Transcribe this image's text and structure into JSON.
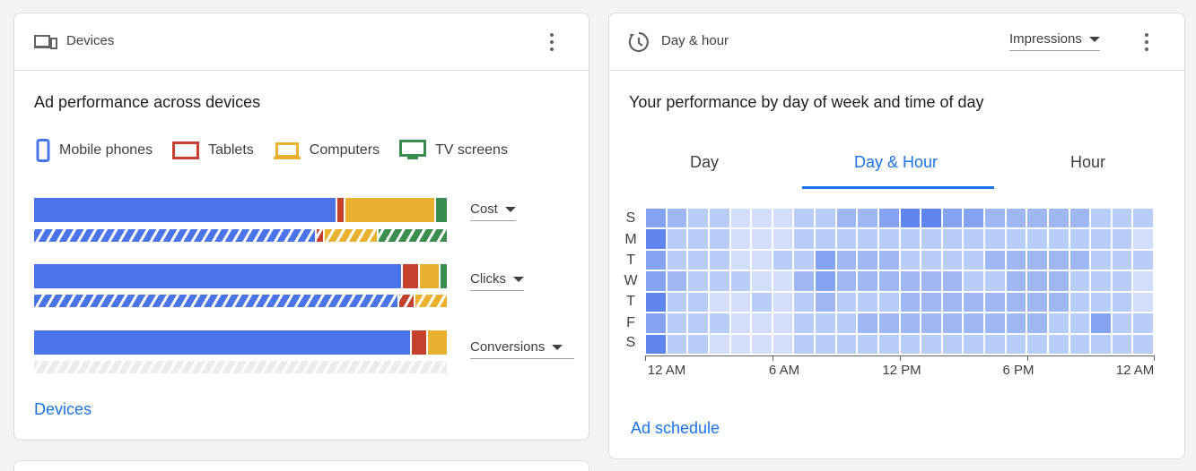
{
  "devices_card": {
    "header_title": "Devices",
    "subtitle": "Ad performance across devices",
    "legend": [
      {
        "label": "Mobile phones",
        "icon": "mobile-phone-icon",
        "color": "#4a74e8"
      },
      {
        "label": "Tablets",
        "icon": "tablet-icon",
        "color": "#c5412f"
      },
      {
        "label": "Computers",
        "icon": "computer-icon",
        "color": "#e8b230"
      },
      {
        "label": "TV screens",
        "icon": "tv-screen-icon",
        "color": "#3a8d4f"
      }
    ],
    "metrics": [
      {
        "label": "Cost",
        "shares": [
          73,
          2,
          22,
          3
        ],
        "comparison_shares": [
          68,
          2,
          13,
          17
        ]
      },
      {
        "label": "Clicks",
        "shares": [
          89,
          4,
          5,
          2
        ],
        "comparison_shares": [
          88,
          4,
          8,
          0
        ]
      },
      {
        "label": "Conversions",
        "shares": [
          91,
          4,
          5,
          0
        ],
        "comparison_shares": []
      }
    ],
    "link": "Devices"
  },
  "dayhour_card": {
    "header_title": "Day & hour",
    "metric_dropdown": "Impressions",
    "subtitle": "Your performance by day of week and time of day",
    "tabs": [
      {
        "label": "Day",
        "active": false
      },
      {
        "label": "Day & Hour",
        "active": true
      },
      {
        "label": "Hour",
        "active": false
      }
    ],
    "days": [
      "S",
      "M",
      "T",
      "W",
      "T",
      "F",
      "S"
    ],
    "x_ticks": [
      "12 AM",
      "6 AM",
      "12 PM",
      "6 PM",
      "12 AM"
    ],
    "heatmap_levels": [
      [
        3,
        2,
        1,
        1,
        0,
        0,
        0,
        1,
        1,
        2,
        2,
        3,
        4,
        4,
        3,
        3,
        2,
        2,
        2,
        2,
        2,
        1,
        1,
        1
      ],
      [
        4,
        1,
        1,
        1,
        0,
        0,
        0,
        1,
        1,
        1,
        1,
        1,
        1,
        1,
        1,
        1,
        1,
        1,
        1,
        1,
        1,
        1,
        1,
        0
      ],
      [
        3,
        1,
        1,
        1,
        0,
        0,
        1,
        1,
        3,
        2,
        2,
        2,
        1,
        1,
        1,
        1,
        2,
        2,
        2,
        2,
        2,
        1,
        1,
        1
      ],
      [
        3,
        2,
        1,
        1,
        1,
        0,
        0,
        2,
        3,
        2,
        2,
        2,
        2,
        2,
        2,
        1,
        1,
        2,
        2,
        2,
        1,
        1,
        1,
        0
      ],
      [
        4,
        1,
        1,
        0,
        0,
        1,
        0,
        1,
        2,
        1,
        1,
        1,
        2,
        2,
        2,
        2,
        2,
        2,
        2,
        2,
        1,
        1,
        1,
        0
      ],
      [
        3,
        1,
        1,
        1,
        0,
        0,
        0,
        1,
        1,
        1,
        2,
        2,
        2,
        2,
        2,
        2,
        2,
        2,
        2,
        1,
        1,
        3,
        1,
        1
      ],
      [
        4,
        1,
        1,
        0,
        0,
        0,
        0,
        1,
        1,
        1,
        1,
        1,
        1,
        1,
        1,
        1,
        1,
        1,
        1,
        1,
        1,
        1,
        1,
        1
      ]
    ],
    "heatmap_palette": [
      "#d2defb",
      "#b9cdf9",
      "#9fb8f5",
      "#84a3f1",
      "#5e86ec"
    ],
    "link": "Ad schedule"
  }
}
